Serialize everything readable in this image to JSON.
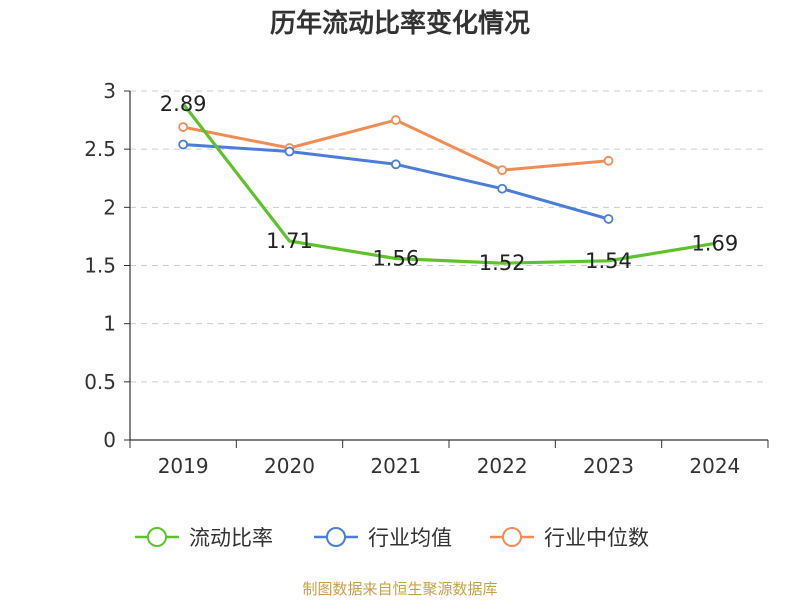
{
  "chart_data": {
    "type": "line",
    "title": "历年流动比率变化情况",
    "categories": [
      "2019",
      "2020",
      "2021",
      "2022",
      "2023",
      "2024"
    ],
    "ylim": [
      0,
      3
    ],
    "yticks": [
      "0",
      "0.5",
      "1",
      "1.5",
      "2",
      "2.5",
      "3"
    ],
    "grid": true,
    "legend_position": "bottom",
    "series": [
      {
        "name": "流动比率",
        "color": "#5ec22d",
        "values": [
          2.89,
          1.71,
          1.56,
          1.52,
          1.54,
          1.69
        ],
        "labels": [
          "2.89",
          "1.71",
          "1.56",
          "1.52",
          "1.54",
          "1.69"
        ]
      },
      {
        "name": "行业均值",
        "color": "#4a7ed9",
        "values": [
          2.54,
          2.48,
          2.37,
          2.16,
          1.9,
          null
        ]
      },
      {
        "name": "行业中位数",
        "color": "#f08c54",
        "values": [
          2.69,
          2.51,
          2.75,
          2.32,
          2.4,
          null
        ]
      }
    ]
  },
  "source": "制图数据来自恒生聚源数据库"
}
